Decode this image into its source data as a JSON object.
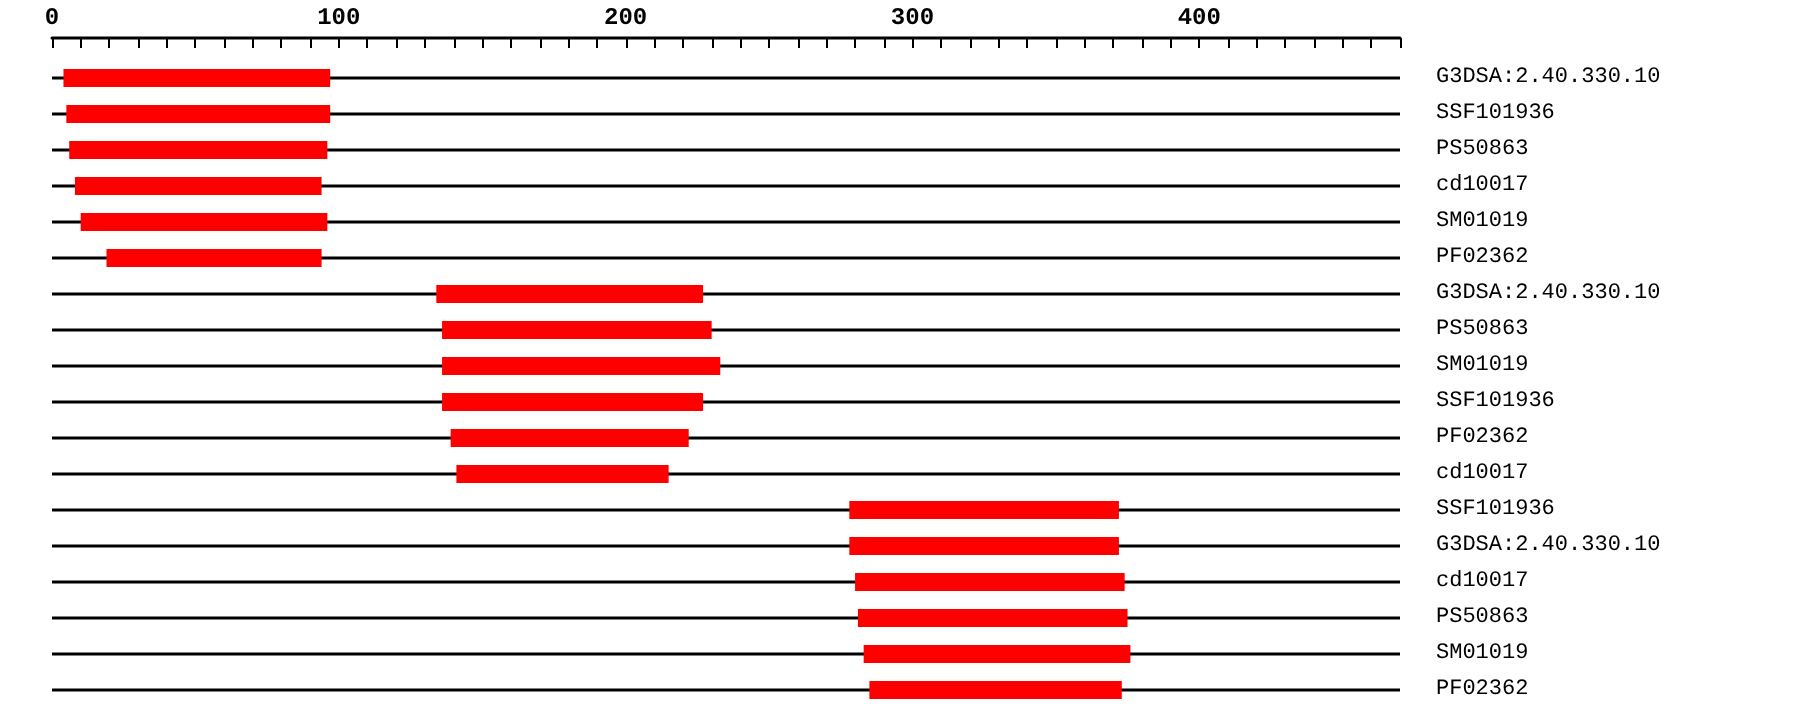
{
  "chart_data": {
    "type": "bar",
    "orientation": "horizontal",
    "grid": "y",
    "categories": [
      "G3DSA:2.40.330.10",
      "SSF101936",
      "PS50863",
      "cd10017",
      "SM01019",
      "PF02362",
      "G3DSA:2.40.330.10",
      "PS50863",
      "SM01019",
      "SSF101936",
      "PF02362",
      "cd10017",
      "SSF101936",
      "G3DSA:2.40.330.10",
      "cd10017",
      "PS50863",
      "SM01019",
      "PF02362"
    ],
    "base": [
      4,
      5,
      6,
      8,
      10,
      19,
      134,
      136,
      136,
      136,
      139,
      141,
      278,
      278,
      280,
      281,
      283,
      285
    ],
    "values": [
      93,
      92,
      90,
      86,
      86,
      75,
      93,
      94,
      97,
      91,
      83,
      74,
      94,
      94,
      94,
      94,
      93,
      88
    ],
    "color": "#ff0000",
    "xlim": [
      0,
      470
    ],
    "xticks": [
      0,
      {
        "value": 10,
        "label": null
      },
      {
        "value": 20,
        "label": null
      },
      {
        "value": 30,
        "label": null
      },
      {
        "value": 40,
        "label": null
      },
      {
        "value": 50,
        "label": null
      },
      {
        "value": 60,
        "label": null
      },
      {
        "value": 70,
        "label": null
      },
      {
        "value": 80,
        "label": null
      },
      {
        "value": 90,
        "label": null
      },
      100,
      {
        "value": 110,
        "label": null
      },
      {
        "value": 120,
        "label": null
      },
      {
        "value": 130,
        "label": null
      },
      {
        "value": 140,
        "label": null
      },
      {
        "value": 150,
        "label": null
      },
      {
        "value": 160,
        "label": null
      },
      {
        "value": 170,
        "label": null
      },
      {
        "value": 180,
        "label": null
      },
      {
        "value": 190,
        "label": null
      },
      200,
      {
        "value": 210,
        "label": null
      },
      {
        "value": 220,
        "label": null
      },
      {
        "value": 230,
        "label": null
      },
      {
        "value": 240,
        "label": null
      },
      {
        "value": 250,
        "label": null
      },
      {
        "value": 260,
        "label": null
      },
      {
        "value": 270,
        "label": null
      },
      {
        "value": 280,
        "label": null
      },
      {
        "value": 290,
        "label": null
      },
      300,
      {
        "value": 310,
        "label": null
      },
      {
        "value": 320,
        "label": null
      },
      {
        "value": 330,
        "label": null
      },
      {
        "value": 340,
        "label": null
      },
      {
        "value": 350,
        "label": null
      },
      {
        "value": 360,
        "label": null
      },
      {
        "value": 370,
        "label": null
      },
      {
        "value": 380,
        "label": null
      },
      {
        "value": 390,
        "label": null
      },
      400,
      {
        "value": 410,
        "label": null
      },
      {
        "value": 420,
        "label": null
      },
      {
        "value": 430,
        "label": null
      },
      {
        "value": 440,
        "label": null
      },
      {
        "value": 450,
        "label": null
      },
      {
        "value": 460,
        "label": null
      },
      {
        "value": 470,
        "label": null
      }
    ]
  }
}
